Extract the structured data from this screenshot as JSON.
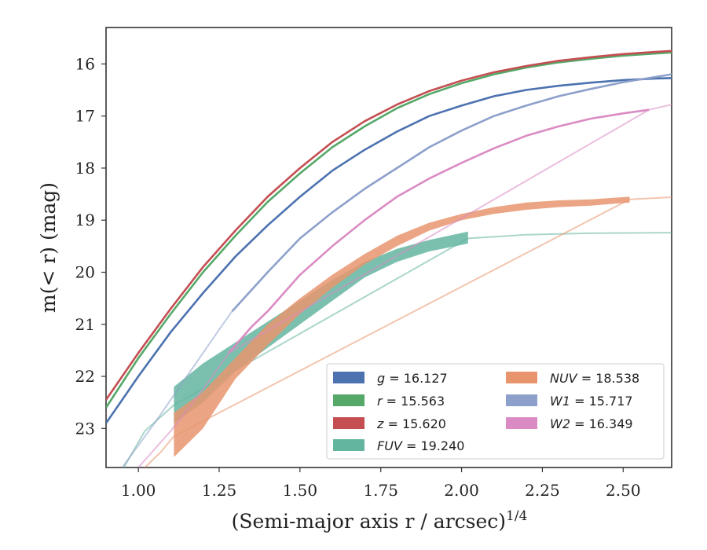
{
  "chart_data": {
    "type": "line",
    "title": "",
    "xlabel": "(Semi-major axis r / arcsec)",
    "xlabel_exponent": "1/4",
    "ylabel": "m(< r) (mag)",
    "xlim": [
      0.9,
      2.65
    ],
    "ylim": [
      23.75,
      15.3
    ],
    "y_inverted": true,
    "grid": false,
    "legend_position": "bottom-right",
    "legend_columns": 2,
    "x_ticks": [
      1.0,
      1.25,
      1.5,
      1.75,
      2.0,
      2.25,
      2.5
    ],
    "x_tick_labels": [
      "1.00",
      "1.25",
      "1.50",
      "1.75",
      "2.00",
      "2.25",
      "2.50"
    ],
    "y_ticks": [
      16,
      17,
      18,
      19,
      20,
      21,
      22,
      23
    ],
    "y_tick_labels": [
      "16",
      "17",
      "18",
      "19",
      "20",
      "21",
      "22",
      "23"
    ],
    "series": [
      {
        "band": "g",
        "value": "16.127",
        "color": "#4c72b0",
        "kind": "line",
        "x": [
          0.9,
          1.0,
          1.1,
          1.2,
          1.3,
          1.4,
          1.5,
          1.6,
          1.7,
          1.8,
          1.9,
          2.0,
          2.1,
          2.2,
          2.3,
          2.4,
          2.5,
          2.6,
          2.65
        ],
        "y": [
          22.9,
          22.0,
          21.15,
          20.4,
          19.7,
          19.1,
          18.55,
          18.05,
          17.65,
          17.3,
          17.0,
          16.8,
          16.62,
          16.5,
          16.42,
          16.36,
          16.31,
          16.28,
          16.27
        ]
      },
      {
        "band": "r",
        "value": "15.563",
        "color": "#55a868",
        "kind": "line",
        "x": [
          0.9,
          1.0,
          1.1,
          1.2,
          1.3,
          1.4,
          1.5,
          1.6,
          1.7,
          1.8,
          1.9,
          2.0,
          2.1,
          2.2,
          2.3,
          2.4,
          2.5,
          2.6,
          2.65
        ],
        "y": [
          22.6,
          21.65,
          20.8,
          20.0,
          19.3,
          18.65,
          18.1,
          17.6,
          17.2,
          16.85,
          16.58,
          16.37,
          16.2,
          16.07,
          15.97,
          15.9,
          15.84,
          15.8,
          15.78
        ]
      },
      {
        "band": "z",
        "value": "15.620",
        "color": "#c44e52",
        "kind": "line",
        "x": [
          0.9,
          1.0,
          1.1,
          1.2,
          1.3,
          1.4,
          1.5,
          1.6,
          1.7,
          1.8,
          1.9,
          2.0,
          2.1,
          2.2,
          2.3,
          2.4,
          2.5,
          2.6,
          2.65
        ],
        "y": [
          22.45,
          21.55,
          20.7,
          19.9,
          19.2,
          18.55,
          18.0,
          17.5,
          17.1,
          16.78,
          16.52,
          16.32,
          16.16,
          16.04,
          15.94,
          15.87,
          15.81,
          15.77,
          15.75
        ]
      },
      {
        "band": "FUV",
        "value": "19.240",
        "color": "#64b5a0",
        "kind": "band",
        "x": [
          1.11,
          1.2,
          1.3,
          1.4,
          1.5,
          1.6,
          1.7,
          1.8,
          1.9,
          2.02
        ],
        "y_top": [
          22.2,
          21.75,
          21.35,
          20.95,
          20.55,
          20.15,
          19.8,
          19.55,
          19.38,
          19.22
        ],
        "y_bottom": [
          22.9,
          22.5,
          21.9,
          21.45,
          21.0,
          20.55,
          20.1,
          19.8,
          19.6,
          19.45
        ],
        "faint_x": [
          0.95,
          1.02,
          1.11,
          2.02,
          2.2,
          2.4,
          2.65
        ],
        "faint_y": [
          23.8,
          23.05,
          22.55,
          19.35,
          19.28,
          19.25,
          19.24
        ]
      },
      {
        "band": "NUV",
        "value": "18.538",
        "color": "#e8956e",
        "kind": "band",
        "x": [
          1.11,
          1.2,
          1.3,
          1.4,
          1.5,
          1.6,
          1.7,
          1.8,
          1.9,
          2.0,
          2.1,
          2.2,
          2.3,
          2.4,
          2.52
        ],
        "y_top": [
          22.7,
          22.3,
          21.65,
          21.0,
          20.5,
          20.05,
          19.65,
          19.3,
          19.05,
          18.88,
          18.75,
          18.66,
          18.62,
          18.6,
          18.55
        ],
        "y_bottom": [
          23.55,
          23.0,
          22.05,
          21.4,
          20.8,
          20.3,
          19.85,
          19.5,
          19.2,
          19.0,
          18.88,
          18.8,
          18.75,
          18.72,
          18.66
        ],
        "faint_x": [
          1.02,
          1.07,
          1.11,
          2.52,
          2.65
        ],
        "faint_y": [
          23.75,
          23.45,
          23.15,
          18.6,
          18.56
        ]
      },
      {
        "band": "W1",
        "value": "15.717",
        "color": "#8da0cb",
        "kind": "line",
        "x": [
          1.29,
          1.4,
          1.5,
          1.6,
          1.7,
          1.8,
          1.9,
          2.0,
          2.1,
          2.2,
          2.3,
          2.4,
          2.5,
          2.65
        ],
        "y": [
          20.75,
          20.0,
          19.35,
          18.85,
          18.4,
          18.0,
          17.6,
          17.28,
          17.0,
          16.8,
          16.62,
          16.48,
          16.35,
          16.2
        ],
        "faint_x": [
          0.95,
          1.05,
          1.15,
          1.25,
          1.29
        ],
        "faint_y": [
          23.75,
          22.9,
          22.0,
          21.1,
          20.75
        ]
      },
      {
        "band": "W2",
        "value": "16.349",
        "color": "#da8bc3",
        "kind": "line",
        "x": [
          1.28,
          1.35,
          1.4,
          1.5,
          1.6,
          1.7,
          1.8,
          1.9,
          2.0,
          2.1,
          2.2,
          2.3,
          2.4,
          2.5,
          2.58
        ],
        "y": [
          21.55,
          21.05,
          20.75,
          20.05,
          19.5,
          19.0,
          18.55,
          18.2,
          17.9,
          17.62,
          17.38,
          17.2,
          17.05,
          16.95,
          16.88
        ],
        "faint_x": [
          1.0,
          1.1,
          1.2,
          1.28,
          2.58,
          2.65
        ],
        "faint_y": [
          23.75,
          23.05,
          22.25,
          21.55,
          16.88,
          16.78
        ]
      }
    ],
    "legend": [
      {
        "band": "g",
        "value": "16.127",
        "italic": true,
        "color": "#4c72b0"
      },
      {
        "band": "r",
        "value": "15.563",
        "italic": true,
        "color": "#55a868"
      },
      {
        "band": "z",
        "value": "15.620",
        "italic": true,
        "color": "#c44e52"
      },
      {
        "band": "FUV",
        "value": "19.240",
        "italic": true,
        "color": "#64b5a0"
      },
      {
        "band": "NUV",
        "value": "18.538",
        "italic": true,
        "color": "#e8956e"
      },
      {
        "band": "W1",
        "value": "15.717",
        "italic": true,
        "color": "#8da0cb"
      },
      {
        "band": "W2",
        "value": "16.349",
        "italic": true,
        "color": "#da8bc3"
      }
    ]
  }
}
